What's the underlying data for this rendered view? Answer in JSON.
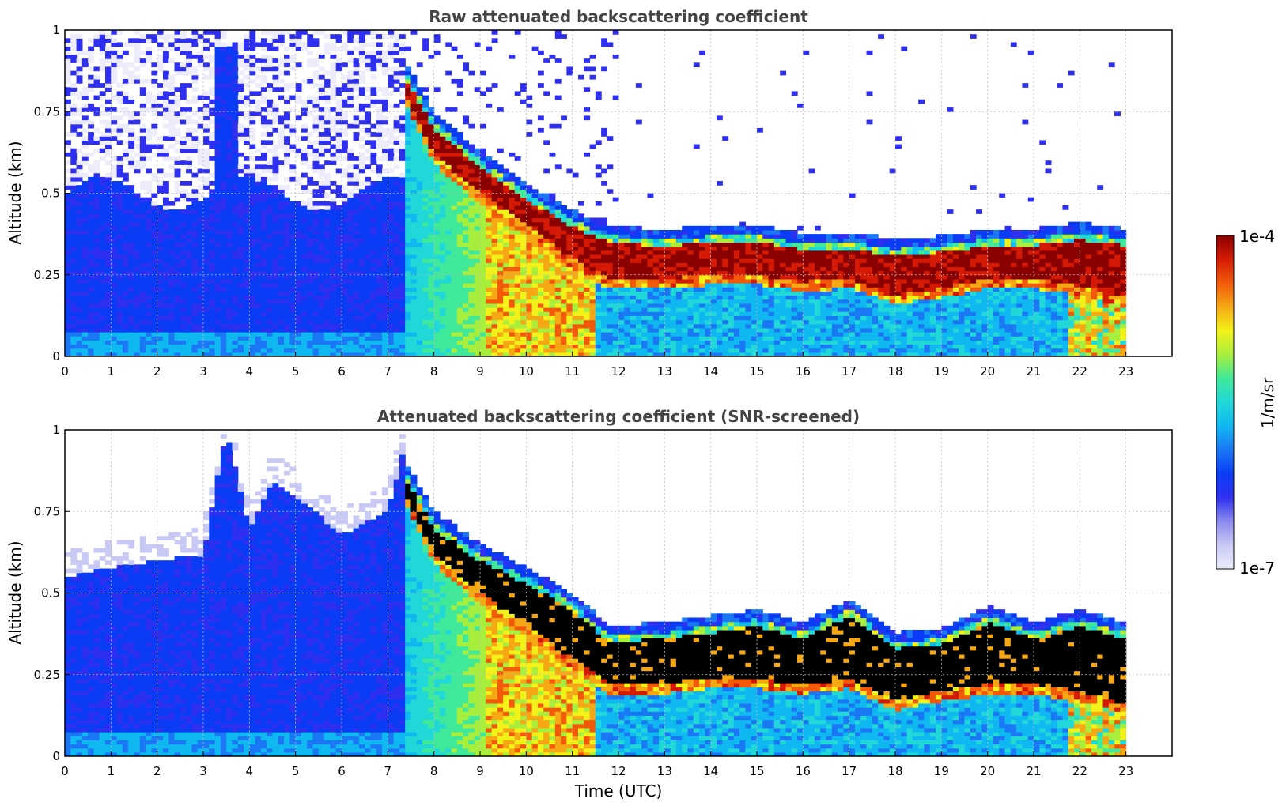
{
  "colors": {
    "background": "#ffffff",
    "title": "#444444",
    "grid": "#bbbbbb",
    "colormap": [
      "#ececfb",
      "#c9c9f5",
      "#8a8aee",
      "#2f2ff0",
      "#0a3cf5",
      "#1a78f5",
      "#0fb8f0",
      "#20d8d8",
      "#40e89a",
      "#a8ee3c",
      "#f2f219",
      "#f5a814",
      "#f25a0a",
      "#d41a04",
      "#8a0000"
    ],
    "masked_strong_signal": "#000000"
  },
  "chart_data": [
    {
      "type": "heatmap",
      "title": "Raw attenuated backscattering coefficient",
      "xlabel": "",
      "ylabel": "Altitude (km)",
      "xlim": [
        0,
        24
      ],
      "ylim": [
        0,
        1
      ],
      "xticks": [
        "0",
        "1",
        "2",
        "3",
        "4",
        "5",
        "6",
        "7",
        "8",
        "9",
        "10",
        "11",
        "12",
        "13",
        "14",
        "15",
        "16",
        "17",
        "18",
        "19",
        "20",
        "21",
        "22",
        "23"
      ],
      "yticks": [
        "0",
        "0.25",
        "0.5",
        "0.75",
        "1"
      ],
      "grid": true,
      "data_end_time": 23,
      "layer_top_km": {
        "t": [
          7.4,
          8,
          9,
          10,
          11,
          11.8,
          13,
          14,
          15,
          16,
          17,
          18,
          19,
          20,
          21,
          22,
          23
        ],
        "v": [
          0.87,
          0.72,
          0.6,
          0.5,
          0.42,
          0.37,
          0.36,
          0.37,
          0.37,
          0.35,
          0.35,
          0.33,
          0.34,
          0.36,
          0.36,
          0.38,
          0.36
        ]
      },
      "layer_bottom_km": {
        "t": [
          7.4,
          8,
          9,
          10,
          11,
          11.8,
          13,
          14,
          15,
          16,
          17,
          18,
          19,
          20,
          21,
          22,
          23
        ],
        "v": [
          0.8,
          0.62,
          0.5,
          0.4,
          0.3,
          0.24,
          0.24,
          0.25,
          0.25,
          0.23,
          0.24,
          0.19,
          0.21,
          0.24,
          0.24,
          0.22,
          0.18
        ]
      },
      "noise_top_km": 0.5,
      "screened": false
    },
    {
      "type": "heatmap",
      "title": "Attenuated backscattering coefficient (SNR-screened)",
      "xlabel": "Time (UTC)",
      "ylabel": "Altitude (km)",
      "xlim": [
        0,
        24
      ],
      "ylim": [
        0,
        1
      ],
      "xticks": [
        "0",
        "1",
        "2",
        "3",
        "4",
        "5",
        "6",
        "7",
        "8",
        "9",
        "10",
        "11",
        "12",
        "13",
        "14",
        "15",
        "16",
        "17",
        "18",
        "19",
        "20",
        "21",
        "22",
        "23"
      ],
      "yticks": [
        "0",
        "0.25",
        "0.5",
        "0.75",
        "1"
      ],
      "grid": true,
      "data_end_time": 23,
      "boundary_layer_top_km": {
        "t": [
          0,
          1,
          2,
          3,
          3.5,
          4,
          4.5,
          5,
          6,
          7,
          7.3
        ],
        "v": [
          0.55,
          0.58,
          0.6,
          0.62,
          1.0,
          0.7,
          0.85,
          0.8,
          0.68,
          0.75,
          0.92
        ]
      },
      "layer_top_km": {
        "t": [
          7.4,
          8,
          9,
          10,
          11,
          11.8,
          13,
          14,
          15,
          16,
          17,
          18,
          19,
          20,
          21,
          22,
          23
        ],
        "v": [
          0.87,
          0.72,
          0.62,
          0.55,
          0.47,
          0.37,
          0.38,
          0.4,
          0.42,
          0.38,
          0.45,
          0.35,
          0.36,
          0.43,
          0.38,
          0.42,
          0.38
        ]
      },
      "layer_bottom_km": {
        "t": [
          7.4,
          8,
          9,
          10,
          11,
          11.8,
          13,
          14,
          15,
          16,
          17,
          18,
          19,
          20,
          21,
          22,
          23
        ],
        "v": [
          0.8,
          0.62,
          0.5,
          0.4,
          0.3,
          0.22,
          0.22,
          0.24,
          0.24,
          0.22,
          0.24,
          0.17,
          0.2,
          0.22,
          0.22,
          0.2,
          0.16
        ]
      },
      "screened": true
    }
  ],
  "colorbar": {
    "max_label": "1e-4",
    "min_label": "1e-7",
    "unit_label": "1/m/sr",
    "vmin": 1e-07,
    "vmax": 0.0001,
    "scale": "log"
  }
}
